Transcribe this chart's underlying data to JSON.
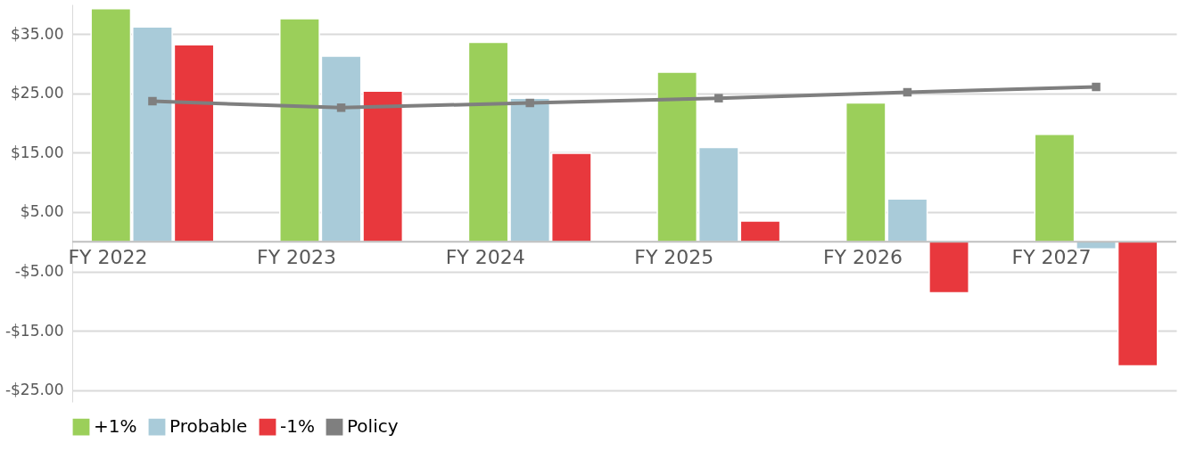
{
  "chart_data": {
    "type": "bar",
    "categories": [
      "FY 2022",
      "FY 2023",
      "FY 2024",
      "FY 2025",
      "FY 2026",
      "FY 2027"
    ],
    "series": [
      {
        "name": "+1%",
        "color": "#9bcf5a",
        "values": [
          39.3,
          37.6,
          33.6,
          28.6,
          23.4,
          18.1
        ]
      },
      {
        "name": "Probable",
        "color": "#a9cbd9",
        "values": [
          36.2,
          31.3,
          24.2,
          15.9,
          7.2,
          -1.2
        ]
      },
      {
        "name": "-1%",
        "color": "#e8383d",
        "values": [
          33.2,
          25.4,
          14.9,
          3.5,
          -8.6,
          -20.9
        ]
      },
      {
        "name": "Policy",
        "type": "line",
        "color": "#7f7f7f",
        "marker": "square",
        "values": [
          23.7,
          22.6,
          23.4,
          24.2,
          25.2,
          26.1
        ]
      }
    ],
    "ylim": [
      -27,
      40
    ],
    "yticks": [
      {
        "value": 35,
        "label": "$35.00"
      },
      {
        "value": 25,
        "label": "$25.00"
      },
      {
        "value": 15,
        "label": "$15.00"
      },
      {
        "value": 5,
        "label": "$5.00"
      },
      {
        "value": -5,
        "label": "-$5.00"
      },
      {
        "value": -15,
        "label": "-$15.00"
      },
      {
        "value": -25,
        "label": "-$25.00"
      }
    ],
    "grid": true,
    "legend": "bottom"
  }
}
